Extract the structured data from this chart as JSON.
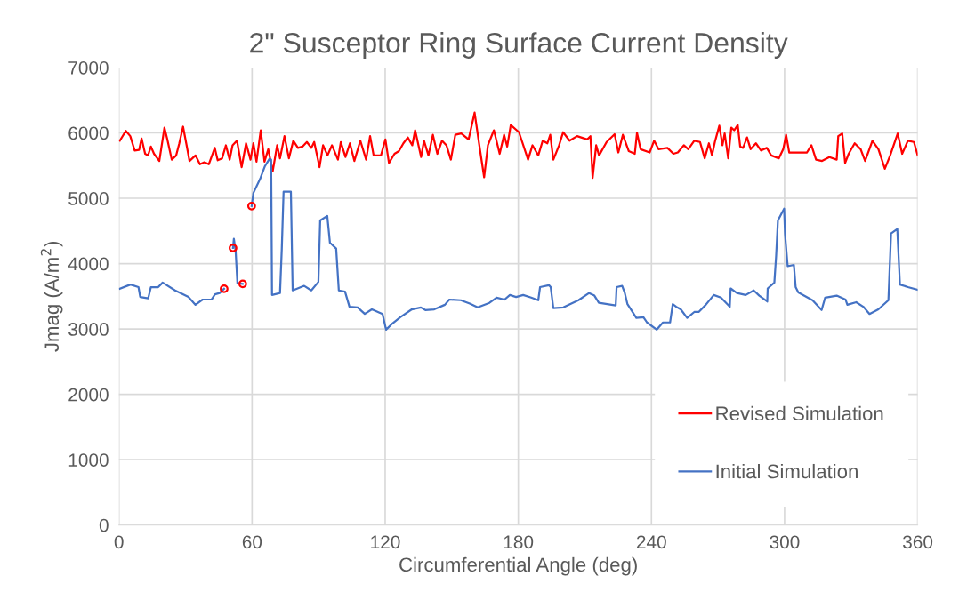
{
  "chart_data": {
    "type": "line",
    "title": "2\" Susceptor Ring Surface Current Density",
    "xlabel": "Circumferential Angle (deg)",
    "ylabel": "Jmag (A/m$^{2}$)",
    "xlim": [
      0,
      360
    ],
    "xticks": [
      0,
      60,
      120,
      180,
      240,
      300,
      360
    ],
    "ylim": [
      0,
      7000
    ],
    "yticks": [
      0,
      1000,
      2000,
      3000,
      4000,
      5000,
      6000,
      7000
    ],
    "grid": true,
    "legend": "bottom right",
    "marker": "none",
    "line_style": "solid",
    "series": [
      {
        "name": "Revised Simulation",
        "color": "#ff0000",
        "x": [
          0.4,
          3.1,
          5.1,
          7.1,
          9.1,
          10.2,
          11.8,
          13.1,
          14.4,
          15.8,
          18.2,
          20.5,
          21.8,
          23.8,
          25.8,
          27.2,
          28.9,
          30.5,
          31.8,
          34.5,
          36.5,
          38.5,
          40.5,
          43.2,
          44.5,
          46.5,
          48.2,
          49.9,
          51.2,
          53.2,
          55.3,
          57.3,
          59.3,
          60.6,
          62.0,
          63.9,
          65.6,
          67.3,
          69.3,
          71.3,
          72.6,
          74.6,
          76.6,
          78.6,
          80.7,
          82.7,
          84.7,
          86.7,
          88.0,
          90.4,
          92.0,
          94.0,
          96.0,
          98.7,
          100.0,
          102.1,
          104.1,
          106.1,
          108.8,
          111.4,
          113.2,
          114.8,
          118.1,
          120.1,
          121.7,
          124.2,
          126.2,
          128.2,
          130.2,
          132.2,
          133.5,
          136.2,
          137.5,
          139.5,
          141.5,
          143.5,
          145.6,
          147.6,
          149.6,
          151.6,
          154.3,
          157.6,
          160.3,
          162.3,
          164.6,
          166.3,
          169.0,
          171.6,
          173.6,
          175.0,
          176.6,
          180.3,
          184.4,
          186.4,
          189.0,
          191.0,
          193.1,
          194.4,
          195.8,
          198.4,
          200.2,
          203.1,
          206.5,
          211.1,
          212.5,
          213.5,
          215.1,
          216.4,
          219.8,
          223.4,
          225.1,
          227.1,
          229.8,
          232.5,
          233.5,
          235.1,
          239.2,
          241.2,
          243.2,
          247.2,
          249.9,
          251.9,
          254.6,
          256.6,
          259.3,
          261.9,
          264.0,
          265.9,
          267.3,
          268.6,
          270.6,
          272.0,
          273.0,
          274.6,
          276.0,
          277.3,
          278.9,
          280.0,
          281.3,
          283.1,
          284.7,
          287.1,
          289.4,
          292.0,
          294.0,
          297.4,
          299.4,
          300.7,
          302.1,
          306.1,
          310.1,
          312.1,
          314.2,
          316.9,
          320.2,
          323.5,
          324.2,
          326.0,
          327.3,
          328.9,
          331.6,
          334.3,
          336.3,
          339.6,
          342.3,
          345.2,
          347.6,
          351.0,
          353.0,
          355.6,
          358.3,
          360
        ],
        "values": [
          5880,
          6030,
          5950,
          5730,
          5740,
          5915,
          5680,
          5655,
          5790,
          5680,
          5570,
          6080,
          5900,
          5590,
          5655,
          5840,
          6095,
          5810,
          5570,
          5655,
          5520,
          5550,
          5520,
          5770,
          5580,
          5610,
          5810,
          5590,
          5810,
          5880,
          5475,
          5840,
          5590,
          5840,
          5560,
          6040,
          5560,
          5750,
          5410,
          5810,
          5610,
          5950,
          5610,
          5880,
          5770,
          5790,
          5860,
          5770,
          5860,
          5475,
          5810,
          5655,
          5810,
          5590,
          5860,
          5630,
          5840,
          5570,
          5880,
          5590,
          5950,
          5655,
          5655,
          5900,
          5540,
          5680,
          5720,
          5840,
          5930,
          5810,
          6040,
          5630,
          5880,
          5655,
          5970,
          5680,
          5880,
          5810,
          5590,
          5970,
          5990,
          5900,
          6310,
          5840,
          5320,
          5810,
          6040,
          5680,
          5970,
          5790,
          6120,
          6010,
          5590,
          5810,
          5655,
          5880,
          5840,
          5970,
          5590,
          5810,
          6010,
          5880,
          5950,
          5900,
          5950,
          5310,
          5810,
          5655,
          5860,
          5980,
          5700,
          5970,
          5720,
          5680,
          6000,
          5750,
          5700,
          5880,
          5750,
          5770,
          5680,
          5700,
          5810,
          5750,
          5880,
          5860,
          5610,
          5840,
          5655,
          5860,
          6110,
          5810,
          5990,
          5610,
          6080,
          6040,
          6120,
          5790,
          5770,
          5930,
          5750,
          5840,
          5730,
          5770,
          5655,
          5610,
          5750,
          5970,
          5700,
          5700,
          5700,
          5810,
          5590,
          5570,
          5630,
          5590,
          5950,
          5990,
          5540,
          5680,
          5840,
          5750,
          5570,
          5880,
          5750,
          5450,
          5655,
          5990,
          5680,
          5880,
          5860,
          5655
        ]
      },
      {
        "name": "Initial Simulation",
        "color": "#4472c4",
        "x": [
          0.4,
          5.2,
          8.8,
          9.6,
          13.2,
          14.4,
          17.7,
          19.7,
          25.3,
          31.3,
          34.5,
          37.7,
          41.7,
          43.3,
          45.4,
          47.4,
          49,
          51.4,
          51.8,
          52.6,
          53.4,
          55.8,
          58,
          59.8,
          60.6,
          63.8,
          65.8,
          67.8,
          68.6,
          69.0,
          72.6,
          73.4,
          74.2,
          77.5,
          78.3,
          83.5,
          86.7,
          89.9,
          90.7,
          93.9,
          95.1,
          97.9,
          99.1,
          101.9,
          103.9,
          107.6,
          110.8,
          114.0,
          118.8,
          120.4,
          122.8,
          126.8,
          132.0,
          136.1,
          138.1,
          142.1,
          146.9,
          148.9,
          154.1,
          158.1,
          161.7,
          167.0,
          170.2,
          173.8,
          176.2,
          179.0,
          182.2,
          185.8,
          189.0,
          189.8,
          193.8,
          194.6,
          195.8,
          200.3,
          207.1,
          211.9,
          214.3,
          216.3,
          223.9,
          224.3,
          226.8,
          228.0,
          229.2,
          233.2,
          236.4,
          238.0,
          242.4,
          245.2,
          248.4,
          249.6,
          251.2,
          253.2,
          256.1,
          259.3,
          261.3,
          264.5,
          268.1,
          271.3,
          275.3,
          275.7,
          278.5,
          282.5,
          286.1,
          288.6,
          292.2,
          292.4,
          295.4,
          296.2,
          297.0,
          299.8,
          300.2,
          301.4,
          304.2,
          305.0,
          306.2,
          312.6,
          316.7,
          318.3,
          323.5,
          327.5,
          328.3,
          332.3,
          335.5,
          338.3,
          342.3,
          346.8,
          348.0,
          350.8,
          352.0,
          355.6,
          360
        ],
        "values": [
          3615,
          3680,
          3640,
          3490,
          3470,
          3640,
          3640,
          3710,
          3590,
          3490,
          3370,
          3450,
          3450,
          3530,
          3550,
          3615,
          null,
          4240,
          4380,
          4190,
          3700,
          3690,
          null,
          4880,
          5080,
          5310,
          5490,
          5600,
          5590,
          3520,
          3550,
          4230,
          5100,
          5100,
          3590,
          3660,
          3590,
          3720,
          4660,
          4730,
          4320,
          4230,
          3590,
          3570,
          3340,
          3330,
          3230,
          3300,
          3230,
          2990,
          3070,
          3180,
          3300,
          3330,
          3290,
          3300,
          3370,
          3450,
          3440,
          3390,
          3330,
          3400,
          3480,
          3450,
          3520,
          3490,
          3520,
          3480,
          3440,
          3640,
          3670,
          3640,
          3320,
          3330,
          3440,
          3550,
          3510,
          3400,
          3360,
          3640,
          3660,
          3550,
          3380,
          3170,
          3180,
          3100,
          2990,
          3100,
          3100,
          3380,
          3340,
          3300,
          3170,
          3260,
          3260,
          3370,
          3520,
          3480,
          3340,
          3620,
          3550,
          3520,
          3590,
          3510,
          3420,
          3620,
          3710,
          4120,
          4660,
          4840,
          4460,
          3960,
          3980,
          3640,
          3560,
          3440,
          3290,
          3480,
          3510,
          3450,
          3370,
          3410,
          3340,
          3230,
          3300,
          3440,
          4460,
          4530,
          3680,
          3640,
          3600
        ]
      },
      {
        "color": "#ff0000",
        "type": "scatter",
        "marker": "circle",
        "x": [
          47.4,
          51.4,
          55.8,
          59.8
        ],
        "values": [
          3615,
          4240,
          3690,
          4880
        ]
      }
    ]
  }
}
